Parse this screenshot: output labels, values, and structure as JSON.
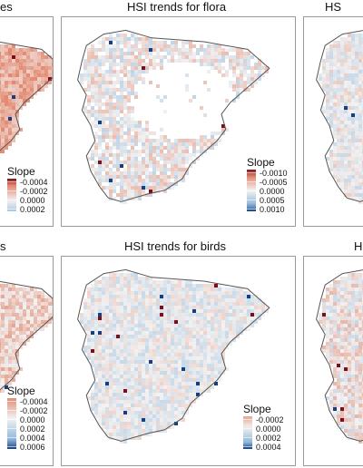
{
  "panels": [
    {
      "id": "p1",
      "title": "es",
      "legend": {
        "title": "Slope",
        "labels": [
          "-0.0004",
          "-0.0002",
          "0.0000",
          "0.0002"
        ]
      }
    },
    {
      "id": "p2",
      "title": "HSI trends for flora",
      "legend": {
        "title": "Slope",
        "labels": [
          "-0.0010",
          "-0.0005",
          "0.0000",
          "0.0005",
          "0.0010"
        ]
      }
    },
    {
      "id": "p3",
      "title": "HS",
      "legend": null
    },
    {
      "id": "p4",
      "title": "s",
      "legend": {
        "title": "Slope",
        "labels": [
          "-0.0004",
          "-0.0002",
          "0.0000",
          "0.0002",
          "0.0004",
          "0.0006"
        ]
      }
    },
    {
      "id": "p5",
      "title": "HSI trends for birds",
      "legend": {
        "title": "Slope",
        "labels": [
          "-0.0002",
          "0.0000",
          "0.0002",
          "0.0004"
        ]
      }
    },
    {
      "id": "p6",
      "title": "H",
      "legend": null
    }
  ],
  "colors": {
    "strong_negative": "#7f0d1a",
    "negative": "#e3866c",
    "zero": "#f2f2f2",
    "positive": "#8fb6d9",
    "strong_positive": "#123f86",
    "coastline": "#555555",
    "panel_border": "#9a9a9a"
  }
}
